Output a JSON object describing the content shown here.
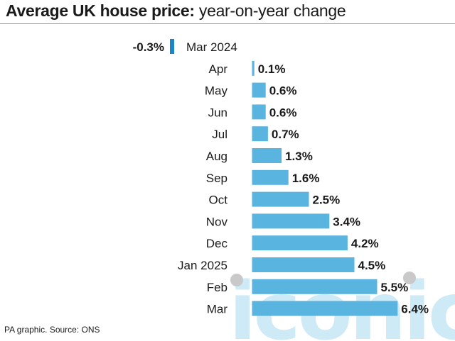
{
  "title": {
    "bold": "Average UK house price:",
    "light": " year-on-year change"
  },
  "source": "PA graphic. Source: ONS",
  "watermark": "iconic",
  "colors": {
    "positive_bar": "#5ab4e0",
    "negative_bar": "#1a86c4",
    "watermark": "#cdeaf6"
  },
  "chart_data": {
    "type": "bar",
    "orientation": "horizontal",
    "categories": [
      "Mar 2024",
      "Apr",
      "May",
      "Jun",
      "Jul",
      "Aug",
      "Sep",
      "Oct",
      "Nov",
      "Dec",
      "Jan 2025",
      "Feb",
      "Mar"
    ],
    "values": [
      -0.3,
      0.1,
      0.6,
      0.6,
      0.7,
      1.3,
      1.6,
      2.5,
      3.4,
      4.2,
      4.5,
      5.5,
      6.4
    ],
    "value_labels": [
      "-0.3%",
      "0.1%",
      "0.6%",
      "0.6%",
      "0.7%",
      "1.3%",
      "1.6%",
      "2.5%",
      "3.4%",
      "4.2%",
      "4.5%",
      "5.5%",
      "6.4%"
    ],
    "title": "Average UK house price: year-on-year change",
    "xlabel": "",
    "ylabel": "",
    "unit": "%",
    "grid": false,
    "legend": "none"
  }
}
